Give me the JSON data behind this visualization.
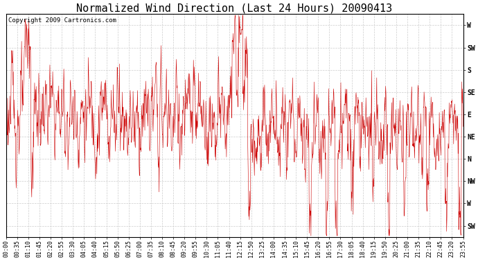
{
  "title": "Normalized Wind Direction (Last 24 Hours) 20090413",
  "copyright_text": "Copyright 2009 Cartronics.com",
  "background_color": "#ffffff",
  "plot_bg_color": "#ffffff",
  "line_color": "#cc0000",
  "ytick_labels": [
    "W",
    "SW",
    "S",
    "SE",
    "E",
    "NE",
    "N",
    "NW",
    "W",
    "SW"
  ],
  "ytick_values": [
    9,
    8,
    7,
    6,
    5,
    4,
    3,
    2,
    1,
    0
  ],
  "ylim": [
    -0.5,
    9.5
  ],
  "xtick_labels": [
    "00:00",
    "00:35",
    "01:10",
    "01:45",
    "02:20",
    "02:55",
    "03:30",
    "04:05",
    "04:40",
    "05:15",
    "05:50",
    "06:25",
    "07:00",
    "07:35",
    "08:10",
    "08:45",
    "09:20",
    "09:55",
    "10:30",
    "11:05",
    "11:40",
    "12:15",
    "12:50",
    "13:25",
    "14:00",
    "14:35",
    "15:10",
    "15:45",
    "16:20",
    "16:55",
    "17:30",
    "18:05",
    "18:40",
    "19:15",
    "19:50",
    "20:25",
    "21:00",
    "21:35",
    "22:10",
    "22:45",
    "23:20",
    "23:55"
  ],
  "grid_color": "#cccccc",
  "grid_linestyle": "--",
  "grid_linewidth": 0.5,
  "title_fontsize": 11,
  "tick_fontsize": 6,
  "copyright_fontsize": 6.5,
  "line_width": 0.4,
  "figwidth": 6.9,
  "figheight": 3.75,
  "dpi": 100
}
